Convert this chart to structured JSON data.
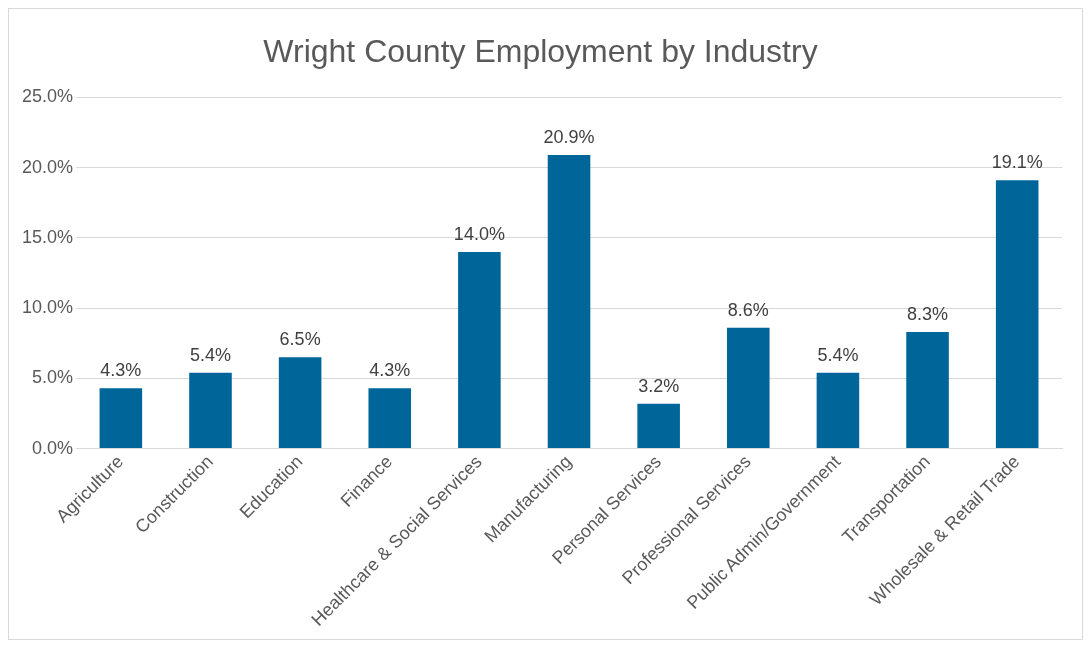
{
  "chart_data": {
    "type": "bar",
    "title": "Wright County Employment by Industry",
    "categories": [
      "Agriculture",
      "Construction",
      "Education",
      "Finance",
      "Healthcare & Social Services",
      "Manufacturing",
      "Personal Services",
      "Professional Services",
      "Public Admin/Government",
      "Transportation",
      "Wholesale & Retail Trade"
    ],
    "values": [
      4.3,
      5.4,
      6.5,
      4.3,
      14.0,
      20.9,
      3.2,
      8.6,
      5.4,
      8.3,
      19.1
    ],
    "value_labels": [
      "4.3%",
      "5.4%",
      "6.5%",
      "4.3%",
      "14.0%",
      "20.9%",
      "3.2%",
      "8.6%",
      "5.4%",
      "8.3%",
      "19.1%"
    ],
    "color": "#006699",
    "ylim": [
      0,
      25
    ],
    "yticks": [
      {
        "value": 0,
        "label": "0.0%"
      },
      {
        "value": 5,
        "label": "5.0%"
      },
      {
        "value": 10,
        "label": "10.0%"
      },
      {
        "value": 15,
        "label": "15.0%"
      },
      {
        "value": 20,
        "label": "20.0%"
      },
      {
        "value": 25,
        "label": "25.0%"
      }
    ],
    "grid": "y"
  }
}
